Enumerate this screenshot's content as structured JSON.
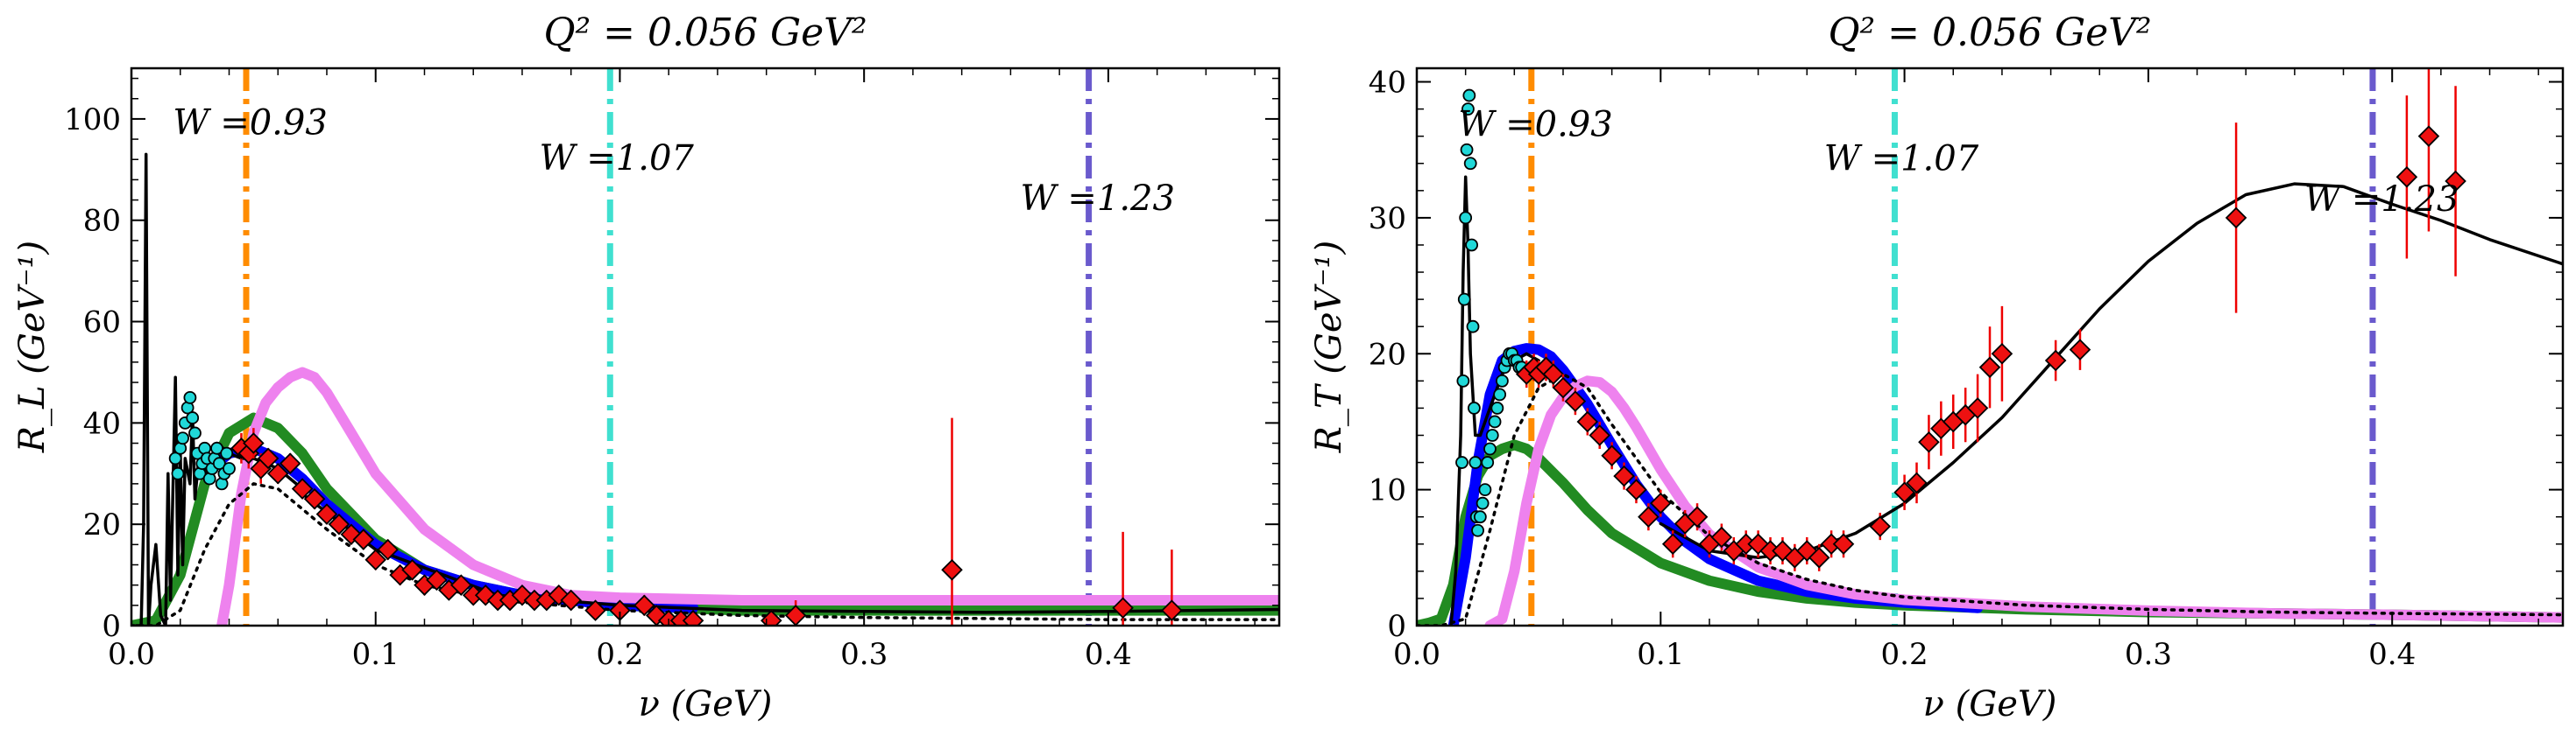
{
  "chart_data": [
    {
      "type": "line",
      "title": "Q² = 0.056 GeV²",
      "xlabel": "ν (GeV)",
      "ylabel": "R_L (GeV⁻¹)",
      "xlim": [
        0.0,
        0.47
      ],
      "ylim": [
        0,
        110
      ],
      "xticks": [
        "0.0",
        "0.1",
        "0.2",
        "0.3",
        "0.4"
      ],
      "xtick_values": [
        0.0,
        0.1,
        0.2,
        0.3,
        0.4
      ],
      "yticks": [
        "0",
        "20",
        "40",
        "60",
        "80",
        "100"
      ],
      "ytick_values": [
        0,
        20,
        40,
        60,
        80,
        100
      ],
      "vlines": [
        {
          "x": 0.047,
          "color": "#ff8c00",
          "label": "W =0.93",
          "label_x": 0.017,
          "label_y": 97
        },
        {
          "x": 0.196,
          "color": "#40e0d0",
          "label": "W =1.07",
          "label_x": 0.167,
          "label_y": 90
        },
        {
          "x": 0.392,
          "color": "#6a5acd",
          "label": "W =1.23",
          "label_x": 0.364,
          "label_y": 82
        }
      ],
      "series": [
        {
          "style": "thick",
          "color": "#228b22",
          "x": [
            0.0,
            0.01,
            0.02,
            0.03,
            0.04,
            0.05,
            0.06,
            0.07,
            0.08,
            0.1,
            0.12,
            0.14,
            0.16,
            0.18,
            0.2,
            0.25,
            0.3,
            0.35,
            0.4,
            0.47
          ],
          "y": [
            0,
            1,
            10,
            28,
            38,
            41,
            39,
            34,
            27,
            17,
            11,
            8,
            6,
            5,
            4,
            3,
            3,
            3,
            3,
            3
          ]
        },
        {
          "style": "thick",
          "color": "#0000ff",
          "x": [
            0.03,
            0.04,
            0.05,
            0.06,
            0.07,
            0.08,
            0.09,
            0.1,
            0.12,
            0.14,
            0.16,
            0.18,
            0.2,
            0.23
          ],
          "y": [
            30,
            34,
            35,
            33,
            29,
            24,
            20,
            16,
            11,
            8,
            6,
            5,
            4,
            3.5
          ]
        },
        {
          "style": "thick",
          "color": "#ee82ee",
          "x": [
            0.037,
            0.04,
            0.045,
            0.05,
            0.055,
            0.06,
            0.065,
            0.07,
            0.075,
            0.08,
            0.09,
            0.1,
            0.12,
            0.14,
            0.16,
            0.18,
            0.2,
            0.25,
            0.3,
            0.35,
            0.4,
            0.47
          ],
          "y": [
            0,
            8,
            26,
            38,
            44,
            47,
            49,
            50,
            49,
            46,
            38,
            30,
            19,
            12,
            8,
            6,
            5.5,
            5,
            5,
            5,
            5,
            5
          ]
        },
        {
          "style": "thin",
          "color": "#000000",
          "x": [
            0.07,
            0.1,
            0.15,
            0.2,
            0.25,
            0.3,
            0.35,
            0.4,
            0.47
          ],
          "y": [
            26,
            15,
            6,
            4,
            3,
            2.8,
            2.6,
            2.8,
            3.2
          ]
        },
        {
          "style": "thin",
          "color": "#000000",
          "x": [
            0.002,
            0.004,
            0.005,
            0.006,
            0.007,
            0.008,
            0.01,
            0.012,
            0.014,
            0.015,
            0.016,
            0.018,
            0.019,
            0.02,
            0.021,
            0.022,
            0.024,
            0.025,
            0.026,
            0.028,
            0.03,
            0.035,
            0.04,
            0.045,
            0.05,
            0.06,
            0.07
          ],
          "y": [
            0,
            0,
            20,
            93,
            0,
            8,
            16,
            2,
            0,
            30,
            5,
            49,
            10,
            35,
            12,
            33,
            28,
            42,
            25,
            35,
            30,
            36,
            34,
            33,
            33,
            31,
            27
          ]
        },
        {
          "style": "dotted",
          "color": "#000000",
          "x": [
            0.0,
            0.01,
            0.02,
            0.03,
            0.04,
            0.05,
            0.06,
            0.07,
            0.08,
            0.1,
            0.12,
            0.15,
            0.2,
            0.25,
            0.3,
            0.35,
            0.4,
            0.47
          ],
          "y": [
            0,
            0,
            3,
            15,
            24,
            28,
            27,
            23,
            19,
            12,
            8,
            5,
            3,
            2,
            1.6,
            1.4,
            1.2,
            1.2
          ]
        }
      ],
      "points_cyan": {
        "x": [
          0.018,
          0.019,
          0.02,
          0.021,
          0.022,
          0.023,
          0.024,
          0.025,
          0.026,
          0.027,
          0.028,
          0.029,
          0.03,
          0.031,
          0.032,
          0.033,
          0.034,
          0.035,
          0.036,
          0.037,
          0.038,
          0.039,
          0.04
        ],
        "y": [
          33,
          30,
          35,
          37,
          40,
          43,
          45,
          41,
          38,
          34,
          30,
          32,
          35,
          33,
          29,
          31,
          33,
          35,
          32,
          28,
          30,
          34,
          31
        ]
      },
      "points_red": {
        "x": [
          0.045,
          0.048,
          0.05,
          0.053,
          0.056,
          0.06,
          0.065,
          0.07,
          0.075,
          0.08,
          0.085,
          0.09,
          0.095,
          0.1,
          0.105,
          0.11,
          0.115,
          0.12,
          0.125,
          0.13,
          0.135,
          0.14,
          0.145,
          0.15,
          0.155,
          0.16,
          0.165,
          0.17,
          0.175,
          0.18,
          0.19,
          0.2,
          0.21,
          0.215,
          0.22,
          0.225,
          0.23,
          0.262,
          0.272,
          0.336,
          0.406,
          0.426
        ],
        "y": [
          35,
          34,
          36,
          31,
          33,
          30,
          32,
          27,
          25,
          22,
          20,
          18,
          17,
          13,
          15,
          10,
          11,
          8,
          9,
          7,
          8,
          6,
          6,
          5,
          5,
          6,
          5,
          5,
          6,
          5,
          3,
          3,
          4,
          2,
          1,
          1,
          1,
          1,
          2,
          11,
          3.5,
          3
        ],
        "yerr": [
          3,
          3,
          3,
          3,
          2,
          2,
          2,
          2,
          2,
          2,
          2,
          2,
          2,
          2,
          2,
          2,
          2,
          2,
          1.5,
          1.5,
          1.5,
          1.5,
          1.5,
          1.5,
          1.5,
          1.5,
          1.5,
          1.5,
          1.5,
          1.5,
          1.5,
          1.5,
          2,
          2,
          2,
          2,
          2,
          2,
          3,
          30,
          15,
          12
        ]
      }
    },
    {
      "type": "line",
      "title": "Q² = 0.056 GeV²",
      "xlabel": "ν (GeV)",
      "ylabel": "R_T (GeV⁻¹)",
      "xlim": [
        0.0,
        0.47
      ],
      "ylim": [
        0,
        41
      ],
      "xticks": [
        "0.0",
        "0.1",
        "0.2",
        "0.3",
        "0.4"
      ],
      "xtick_values": [
        0.0,
        0.1,
        0.2,
        0.3,
        0.4
      ],
      "yticks": [
        "0",
        "10",
        "20",
        "30",
        "40"
      ],
      "ytick_values": [
        0,
        10,
        20,
        30,
        40
      ],
      "vlines": [
        {
          "x": 0.047,
          "color": "#ff8c00",
          "label": "W =0.93",
          "label_x": 0.017,
          "label_y": 36
        },
        {
          "x": 0.196,
          "color": "#40e0d0",
          "label": "W =1.07",
          "label_x": 0.167,
          "label_y": 33.5
        },
        {
          "x": 0.392,
          "color": "#6a5acd",
          "label": "W =1.23",
          "label_x": 0.364,
          "label_y": 30.5
        }
      ],
      "series": [
        {
          "style": "thick",
          "color": "#228b22",
          "x": [
            0.0,
            0.005,
            0.01,
            0.015,
            0.02,
            0.025,
            0.03,
            0.035,
            0.04,
            0.045,
            0.05,
            0.06,
            0.07,
            0.08,
            0.1,
            0.12,
            0.14,
            0.16,
            0.18,
            0.2,
            0.25,
            0.3,
            0.35,
            0.4,
            0.47
          ],
          "y": [
            0,
            0.2,
            0.5,
            3,
            8,
            11,
            12.5,
            13,
            13.3,
            13,
            12.3,
            10.5,
            8.5,
            6.8,
            4.6,
            3.3,
            2.5,
            2,
            1.7,
            1.5,
            1.2,
            1.0,
            0.9,
            0.8,
            0.6
          ]
        },
        {
          "style": "thick",
          "color": "#0000ff",
          "x": [
            0.015,
            0.02,
            0.025,
            0.03,
            0.035,
            0.04,
            0.045,
            0.05,
            0.055,
            0.06,
            0.07,
            0.08,
            0.09,
            0.1,
            0.11,
            0.12,
            0.14,
            0.16,
            0.18,
            0.2,
            0.23
          ],
          "y": [
            0,
            5,
            12,
            17,
            19.5,
            20.2,
            20.4,
            20.3,
            19.8,
            18.8,
            16.3,
            13.3,
            10.4,
            8,
            6.2,
            4.9,
            3.3,
            2.5,
            2,
            1.7,
            1.3
          ]
        },
        {
          "style": "thick",
          "color": "#ee82ee",
          "x": [
            0.03,
            0.035,
            0.04,
            0.045,
            0.05,
            0.055,
            0.06,
            0.065,
            0.07,
            0.075,
            0.08,
            0.085,
            0.09,
            0.1,
            0.11,
            0.12,
            0.14,
            0.16,
            0.18,
            0.2,
            0.25,
            0.3,
            0.35,
            0.4,
            0.47
          ],
          "y": [
            0,
            0.5,
            4,
            9,
            13,
            15.5,
            16.8,
            17.6,
            18,
            17.9,
            17.2,
            16,
            14.6,
            11.5,
            8.8,
            6.7,
            4.3,
            3,
            2.3,
            1.9,
            1.4,
            1.1,
            0.9,
            0.8,
            0.6
          ]
        },
        {
          "style": "thin",
          "color": "#000000",
          "x": [
            0.1,
            0.12,
            0.14,
            0.16,
            0.18,
            0.2,
            0.22,
            0.24,
            0.26,
            0.28,
            0.3,
            0.32,
            0.34,
            0.36,
            0.38,
            0.4,
            0.42,
            0.44,
            0.47
          ],
          "y": [
            7.5,
            5.5,
            5,
            5.5,
            6.8,
            9,
            12,
            15.3,
            19.3,
            23.3,
            26.8,
            29.6,
            31.7,
            32.5,
            32.3,
            31,
            29.8,
            28.4,
            26.6
          ]
        },
        {
          "style": "thin",
          "color": "#000000",
          "x": [
            0.014,
            0.016,
            0.018,
            0.019,
            0.02,
            0.021,
            0.022,
            0.024,
            0.026,
            0.03,
            0.035,
            0.04,
            0.045,
            0.05
          ],
          "y": [
            0,
            4,
            14,
            26,
            33,
            28,
            20,
            14,
            14,
            16,
            18.5,
            19.5,
            20,
            19.5
          ]
        },
        {
          "style": "dotted",
          "color": "#000000",
          "x": [
            0.0,
            0.01,
            0.02,
            0.03,
            0.04,
            0.05,
            0.06,
            0.07,
            0.08,
            0.1,
            0.12,
            0.14,
            0.16,
            0.18,
            0.2,
            0.25,
            0.3,
            0.35,
            0.4,
            0.47
          ],
          "y": [
            0,
            0,
            0.5,
            7,
            14,
            17.5,
            18.5,
            17.5,
            14.8,
            9.8,
            6.6,
            4.6,
            3.4,
            2.6,
            2.1,
            1.5,
            1.2,
            1.0,
            0.9,
            0.8
          ]
        }
      ],
      "points_cyan": {
        "x": [
          0.0185,
          0.019,
          0.0195,
          0.02,
          0.0205,
          0.021,
          0.0215,
          0.022,
          0.0225,
          0.023,
          0.0235,
          0.024,
          0.0245,
          0.025,
          0.026,
          0.027,
          0.028,
          0.029,
          0.03,
          0.031,
          0.032,
          0.033,
          0.034,
          0.035,
          0.036,
          0.037,
          0.038,
          0.039,
          0.04,
          0.041,
          0.042,
          0.043
        ],
        "y": [
          12,
          18,
          24,
          30,
          35,
          38,
          39,
          34,
          28,
          22,
          16,
          12,
          8,
          7,
          8,
          9,
          10,
          12,
          13,
          14,
          15,
          16,
          17,
          18,
          19,
          19.5,
          20,
          20,
          19.5,
          19.5,
          19,
          19
        ]
      },
      "points_red": {
        "x": [
          0.045,
          0.048,
          0.05,
          0.053,
          0.056,
          0.06,
          0.065,
          0.07,
          0.075,
          0.08,
          0.085,
          0.09,
          0.095,
          0.1,
          0.105,
          0.11,
          0.115,
          0.12,
          0.125,
          0.13,
          0.135,
          0.14,
          0.145,
          0.15,
          0.155,
          0.16,
          0.165,
          0.17,
          0.175,
          0.19,
          0.2,
          0.205,
          0.21,
          0.215,
          0.22,
          0.225,
          0.23,
          0.235,
          0.24,
          0.262,
          0.272,
          0.336,
          0.406,
          0.415,
          0.426
        ],
        "y": [
          18.5,
          19,
          18.5,
          19,
          18.5,
          17.5,
          16.5,
          15,
          14,
          12.5,
          11,
          10,
          8,
          9,
          6,
          7.5,
          8,
          6,
          6.5,
          5.5,
          6,
          6,
          5.5,
          5.5,
          5,
          5.5,
          5,
          6,
          6,
          7.3,
          9.8,
          10.5,
          13.5,
          14.5,
          15,
          15.5,
          16,
          19,
          20,
          19.5,
          20.3,
          30,
          33,
          36,
          32.7
        ],
        "yerr": [
          1,
          1,
          1,
          1,
          1,
          1,
          1,
          1,
          1,
          1,
          1,
          1,
          1,
          1,
          1,
          1,
          1,
          1,
          1,
          1,
          1,
          1,
          1,
          1,
          1,
          1,
          1,
          1,
          1,
          1,
          1.3,
          1.5,
          2,
          2,
          2,
          2,
          2.5,
          3,
          3.5,
          1.5,
          1.5,
          7,
          6,
          7,
          7
        ]
      }
    }
  ]
}
